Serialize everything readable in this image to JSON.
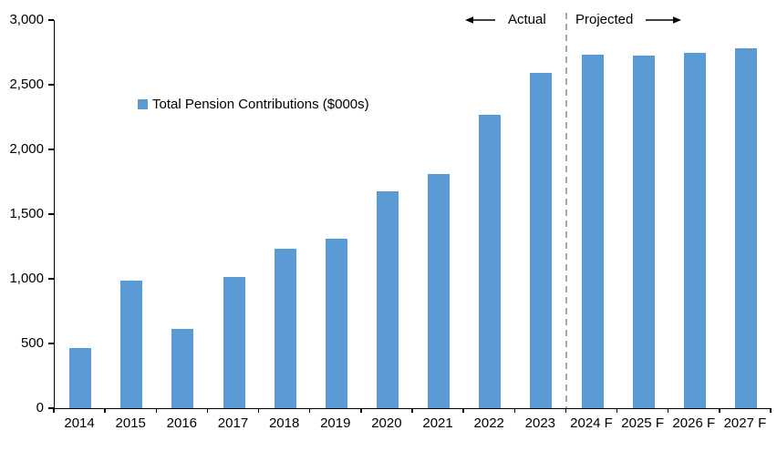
{
  "chart_data": {
    "type": "bar",
    "legend": "Total Pension Contributions ($000s)",
    "categories": [
      "2014",
      "2015",
      "2016",
      "2017",
      "2018",
      "2019",
      "2020",
      "2021",
      "2022",
      "2023",
      "2024 F",
      "2025 F",
      "2026 F",
      "2027 F"
    ],
    "values": [
      465,
      985,
      610,
      1015,
      1230,
      1310,
      1675,
      1810,
      2270,
      2595,
      2735,
      2725,
      2750,
      2780
    ],
    "xlabel": "",
    "ylabel": "",
    "ylim": [
      0,
      3000
    ],
    "ytick_step": 500,
    "ytick_labels": [
      "0",
      "500",
      "1,000",
      "1,500",
      "2,000",
      "2,500",
      "3,000"
    ],
    "grid": false,
    "legend_position": "inside-top-left",
    "bar_color": "#5B9BD5",
    "axis_color": "#000000",
    "text_color": "#000000",
    "divider_color": "#A6A6A6",
    "annotations": {
      "actual_label": "Actual",
      "projected_label": "Projected",
      "divider_after_category": "2023",
      "divider_after_index": 9
    }
  }
}
